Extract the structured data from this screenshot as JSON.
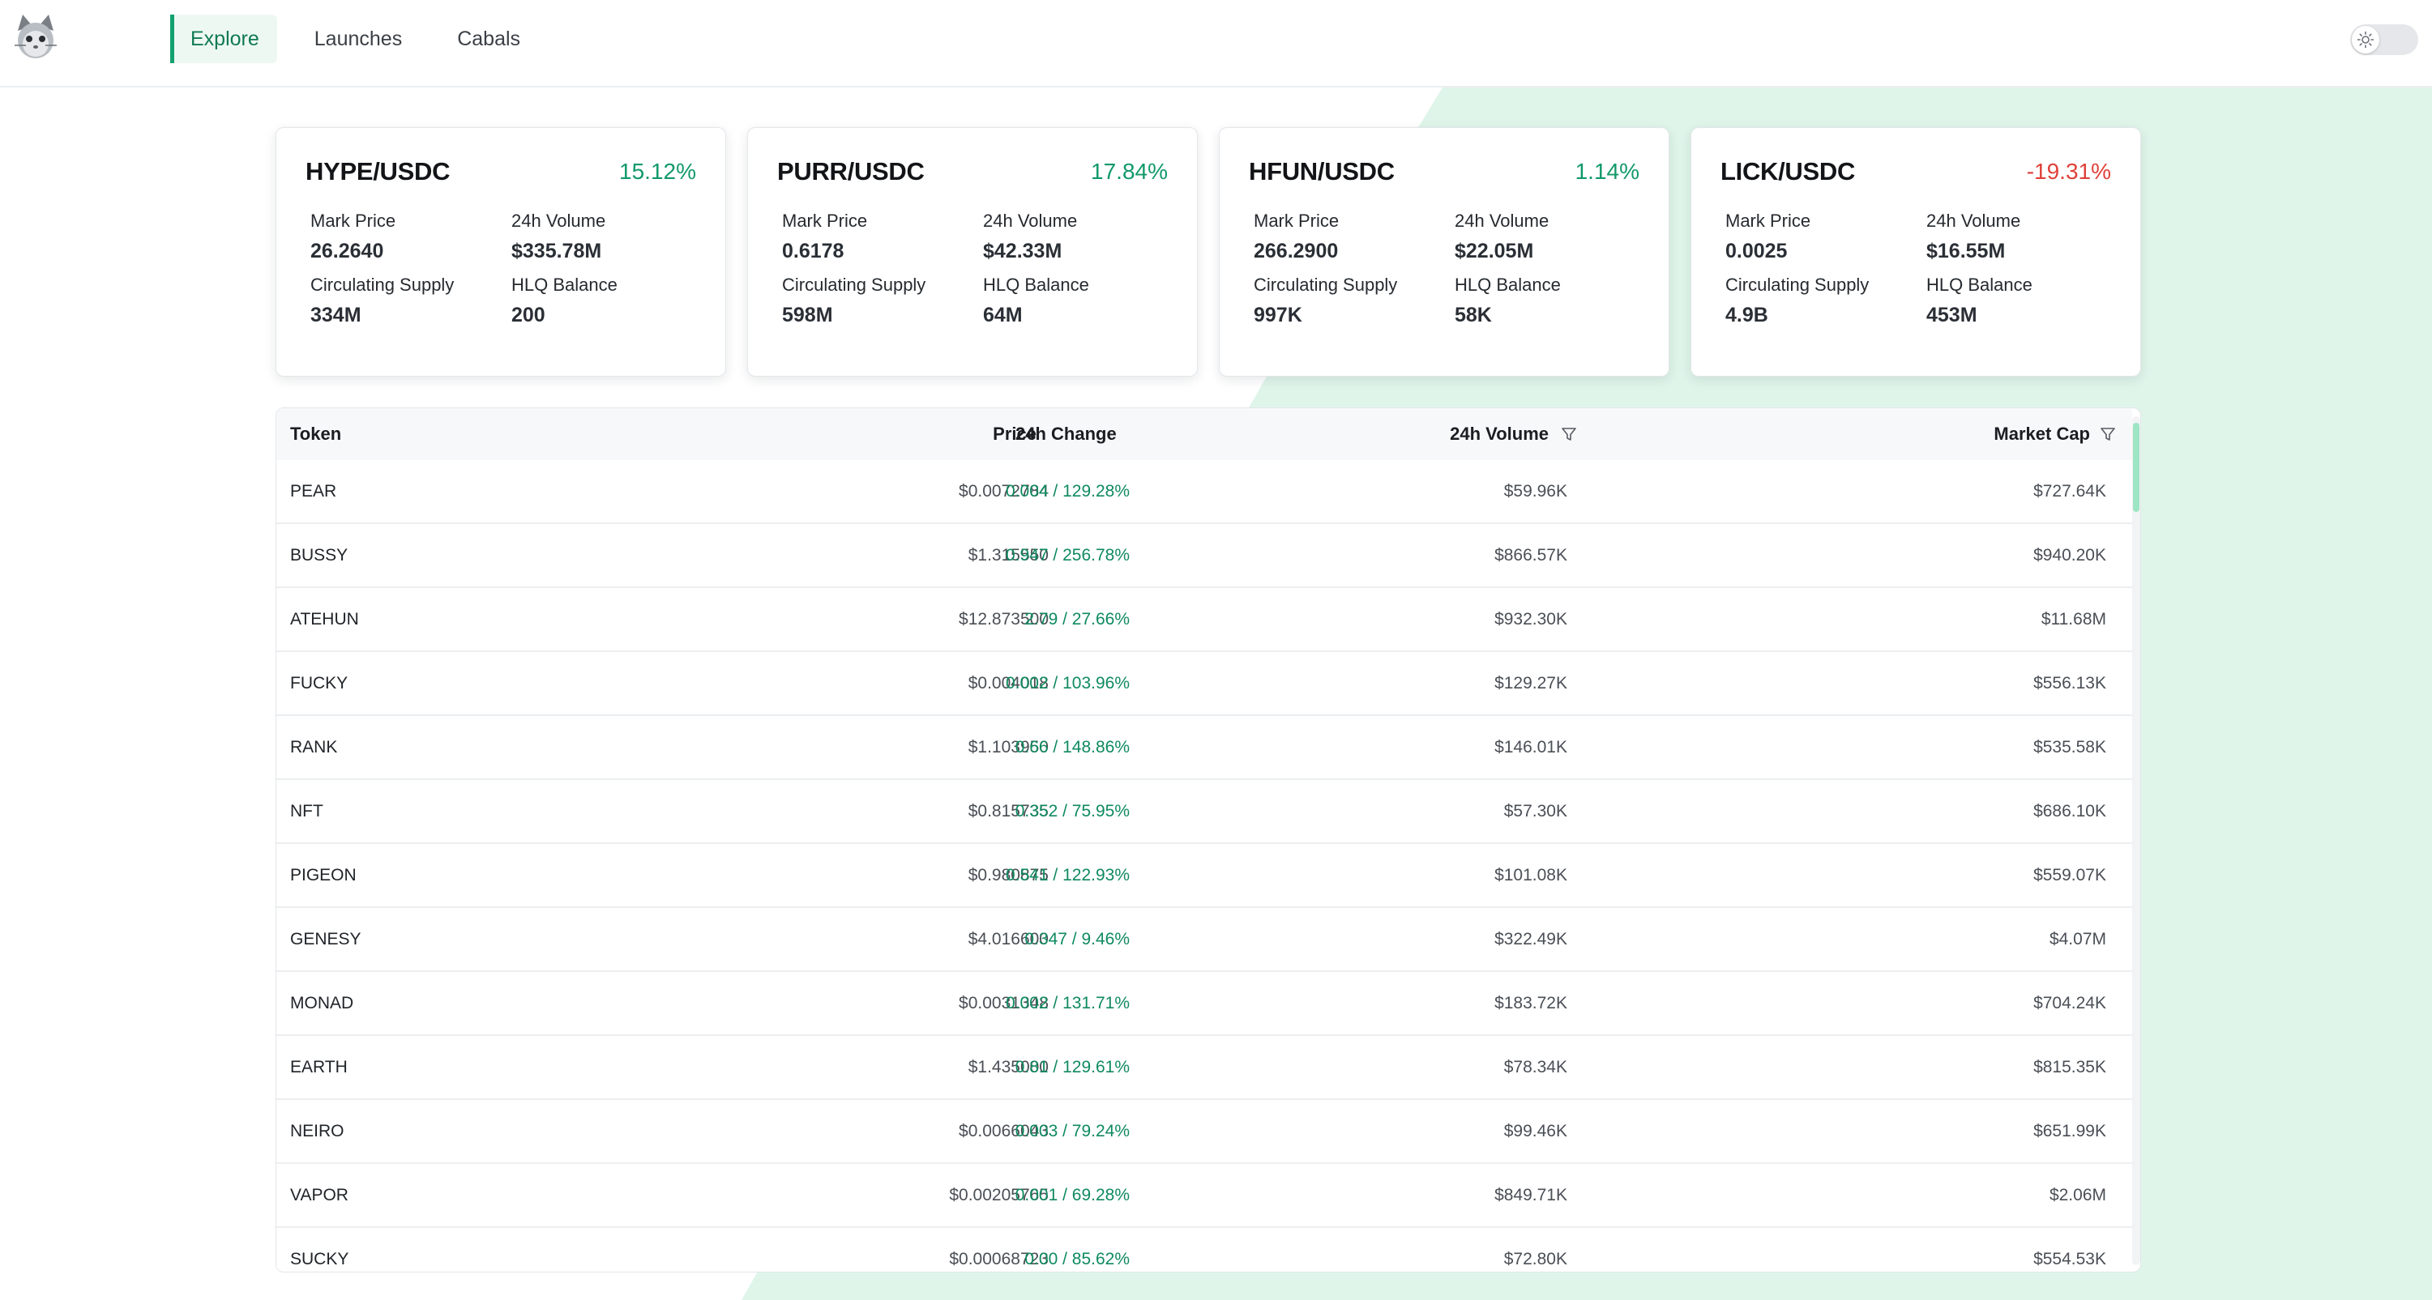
{
  "nav": {
    "tabs": [
      {
        "label": "Explore",
        "active": true
      },
      {
        "label": "Launches",
        "active": false
      },
      {
        "label": "Cabals",
        "active": false
      }
    ]
  },
  "icons": {
    "logo": "cat-logo-icon",
    "theme": "sun-icon",
    "filter": "filter-icon"
  },
  "colors": {
    "accent": "#13a170",
    "positive": "#11996a",
    "negative": "#e0413a",
    "bg_shape": "#dff5ea"
  },
  "cards": [
    {
      "pair": "HYPE/USDC",
      "change": "15.12%",
      "direction": "pos",
      "mark_price_label": "Mark Price",
      "mark_price": "26.2640",
      "volume_label": "24h Volume",
      "volume": "$335.78M",
      "supply_label": "Circulating Supply",
      "supply": "334M",
      "balance_label": "HLQ Balance",
      "balance": "200"
    },
    {
      "pair": "PURR/USDC",
      "change": "17.84%",
      "direction": "pos",
      "mark_price_label": "Mark Price",
      "mark_price": "0.6178",
      "volume_label": "24h Volume",
      "volume": "$42.33M",
      "supply_label": "Circulating Supply",
      "supply": "598M",
      "balance_label": "HLQ Balance",
      "balance": "64M"
    },
    {
      "pair": "HFUN/USDC",
      "change": "1.14%",
      "direction": "pos",
      "mark_price_label": "Mark Price",
      "mark_price": "266.2900",
      "volume_label": "24h Volume",
      "volume": "$22.05M",
      "supply_label": "Circulating Supply",
      "supply": "997K",
      "balance_label": "HLQ Balance",
      "balance": "58K"
    },
    {
      "pair": "LICK/USDC",
      "change": "-19.31%",
      "direction": "neg",
      "mark_price_label": "Mark Price",
      "mark_price": "0.0025",
      "volume_label": "24h Volume",
      "volume": "$16.55M",
      "supply_label": "Circulating Supply",
      "supply": "4.9B",
      "balance_label": "HLQ Balance",
      "balance": "453M"
    }
  ],
  "table": {
    "headers": {
      "token": "Token",
      "price": "Price",
      "change": "24h Change",
      "volume": "24h Volume",
      "mcap": "Market Cap"
    },
    "rows": [
      {
        "token": "PEAR",
        "price": "$0.0072784",
        "change": "0.004 / 129.28%",
        "volume": "$59.96K",
        "mcap": "$727.64K"
      },
      {
        "token": "BUSSY",
        "price": "$1.315550",
        "change": "0.947 / 256.78%",
        "volume": "$866.57K",
        "mcap": "$940.20K"
      },
      {
        "token": "ATEHUN",
        "price": "$12.873500",
        "change": "2.79 / 27.66%",
        "volume": "$932.30K",
        "mcap": "$11.68M"
      },
      {
        "token": "FUCKY",
        "price": "$0.004018",
        "change": "0.002 / 103.96%",
        "volume": "$129.27K",
        "mcap": "$556.13K"
      },
      {
        "token": "RANK",
        "price": "$1.103950",
        "change": "0.66 / 148.86%",
        "volume": "$146.01K",
        "mcap": "$535.58K"
      },
      {
        "token": "NFT",
        "price": "$0.815735",
        "change": "0.352 / 75.95%",
        "volume": "$57.30K",
        "mcap": "$686.10K"
      },
      {
        "token": "PIGEON",
        "price": "$0.980875",
        "change": "0.541 / 122.93%",
        "volume": "$101.08K",
        "mcap": "$559.07K"
      },
      {
        "token": "GENESY",
        "price": "$4.016600",
        "change": "0.347 / 9.46%",
        "volume": "$322.49K",
        "mcap": "$4.07M"
      },
      {
        "token": "MONAD",
        "price": "$0.0031348",
        "change": "0.002 / 131.71%",
        "volume": "$183.72K",
        "mcap": "$704.24K"
      },
      {
        "token": "EARTH",
        "price": "$1.435000",
        "change": "0.81 / 129.61%",
        "volume": "$78.34K",
        "mcap": "$815.35K"
      },
      {
        "token": "NEIRO",
        "price": "$0.0066043",
        "change": "0.003 / 79.24%",
        "volume": "$99.46K",
        "mcap": "$651.99K"
      },
      {
        "token": "VAPOR",
        "price": "$0.00205765",
        "change": "0.001 / 69.28%",
        "volume": "$849.71K",
        "mcap": "$2.06M"
      },
      {
        "token": "SUCKY",
        "price": "$0.00068723",
        "change": "0.00 / 85.62%",
        "volume": "$72.80K",
        "mcap": "$554.53K"
      }
    ]
  }
}
